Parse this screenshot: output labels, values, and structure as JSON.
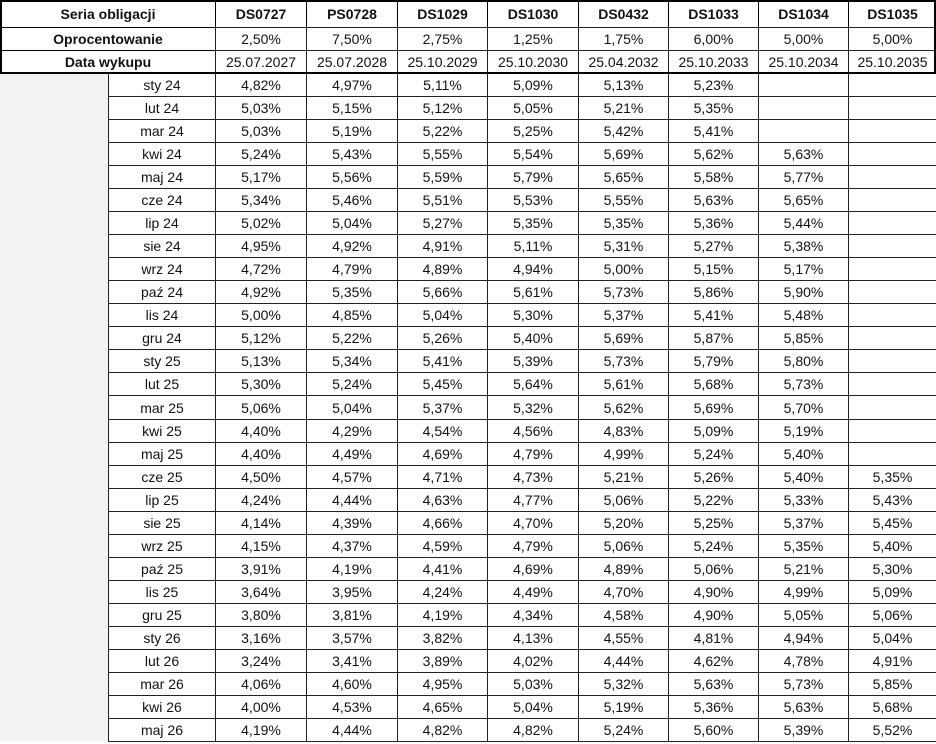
{
  "table": {
    "header": {
      "label": "Seria obligacji",
      "series": [
        "DS0727",
        "PS0728",
        "DS1029",
        "DS1030",
        "DS0432",
        "DS1033",
        "DS1034",
        "DS1035"
      ]
    },
    "rate": {
      "label": "Oprocentowanie",
      "values": [
        "2,50%",
        "7,50%",
        "2,75%",
        "1,25%",
        "1,75%",
        "6,00%",
        "5,00%",
        "5,00%"
      ]
    },
    "maturity": {
      "label": "Data wykupu",
      "values": [
        "25.07.2027",
        "25.07.2028",
        "25.10.2029",
        "25.10.2030",
        "25.04.2032",
        "25.10.2033",
        "25.10.2034",
        "25.10.2035"
      ]
    },
    "rows": [
      {
        "month": "sty 24",
        "values": [
          "4,82%",
          "4,97%",
          "5,11%",
          "5,09%",
          "5,13%",
          "5,23%",
          null,
          null
        ]
      },
      {
        "month": "lut 24",
        "values": [
          "5,03%",
          "5,15%",
          "5,12%",
          "5,05%",
          "5,21%",
          "5,35%",
          null,
          null
        ]
      },
      {
        "month": "mar 24",
        "values": [
          "5,03%",
          "5,19%",
          "5,22%",
          "5,25%",
          "5,42%",
          "5,41%",
          null,
          null
        ]
      },
      {
        "month": "kwi 24",
        "values": [
          "5,24%",
          "5,43%",
          "5,55%",
          "5,54%",
          "5,69%",
          "5,62%",
          "5,63%",
          null
        ]
      },
      {
        "month": "maj 24",
        "values": [
          "5,17%",
          "5,56%",
          "5,59%",
          "5,79%",
          "5,65%",
          "5,58%",
          "5,77%",
          null
        ]
      },
      {
        "month": "cze 24",
        "values": [
          "5,34%",
          "5,46%",
          "5,51%",
          "5,53%",
          "5,55%",
          "5,63%",
          "5,65%",
          null
        ]
      },
      {
        "month": "lip 24",
        "values": [
          "5,02%",
          "5,04%",
          "5,27%",
          "5,35%",
          "5,35%",
          "5,36%",
          "5,44%",
          null
        ]
      },
      {
        "month": "sie 24",
        "values": [
          "4,95%",
          "4,92%",
          "4,91%",
          "5,11%",
          "5,31%",
          "5,27%",
          "5,38%",
          null
        ]
      },
      {
        "month": "wrz 24",
        "values": [
          "4,72%",
          "4,79%",
          "4,89%",
          "4,94%",
          "5,00%",
          "5,15%",
          "5,17%",
          null
        ]
      },
      {
        "month": "paź 24",
        "values": [
          "4,92%",
          "5,35%",
          "5,66%",
          "5,61%",
          "5,73%",
          "5,86%",
          "5,90%",
          null
        ]
      },
      {
        "month": "lis 24",
        "values": [
          "5,00%",
          "4,85%",
          "5,04%",
          "5,30%",
          "5,37%",
          "5,41%",
          "5,48%",
          null
        ]
      },
      {
        "month": "gru 24",
        "values": [
          "5,12%",
          "5,22%",
          "5,26%",
          "5,40%",
          "5,69%",
          "5,87%",
          "5,85%",
          null
        ]
      },
      {
        "month": "sty 25",
        "values": [
          "5,13%",
          "5,34%",
          "5,41%",
          "5,39%",
          "5,73%",
          "5,79%",
          "5,80%",
          null
        ]
      },
      {
        "month": "lut 25",
        "values": [
          "5,30%",
          "5,24%",
          "5,45%",
          "5,64%",
          "5,61%",
          "5,68%",
          "5,73%",
          null
        ]
      },
      {
        "month": "mar 25",
        "values": [
          "5,06%",
          "5,04%",
          "5,37%",
          "5,32%",
          "5,62%",
          "5,69%",
          "5,70%",
          null
        ]
      },
      {
        "month": "kwi 25",
        "values": [
          "4,40%",
          "4,29%",
          "4,54%",
          "4,56%",
          "4,83%",
          "5,09%",
          "5,19%",
          null
        ]
      },
      {
        "month": "maj 25",
        "values": [
          "4,40%",
          "4,49%",
          "4,69%",
          "4,79%",
          "4,99%",
          "5,24%",
          "5,40%",
          null
        ]
      },
      {
        "month": "cze 25",
        "values": [
          "4,50%",
          "4,57%",
          "4,71%",
          "4,73%",
          "5,21%",
          "5,26%",
          "5,40%",
          "5,35%"
        ]
      },
      {
        "month": "lip 25",
        "values": [
          "4,24%",
          "4,44%",
          "4,63%",
          "4,77%",
          "5,06%",
          "5,22%",
          "5,33%",
          "5,43%"
        ]
      },
      {
        "month": "sie 25",
        "values": [
          "4,14%",
          "4,39%",
          "4,66%",
          "4,70%",
          "5,20%",
          "5,25%",
          "5,37%",
          "5,45%"
        ]
      },
      {
        "month": "wrz 25",
        "values": [
          "4,15%",
          "4,37%",
          "4,59%",
          "4,79%",
          "5,06%",
          "5,24%",
          "5,35%",
          "5,40%"
        ]
      },
      {
        "month": "paź 25",
        "values": [
          "3,91%",
          "4,19%",
          "4,41%",
          "4,69%",
          "4,89%",
          "5,06%",
          "5,21%",
          "5,30%"
        ]
      },
      {
        "month": "lis 25",
        "values": [
          "3,64%",
          "3,95%",
          "4,24%",
          "4,49%",
          "4,70%",
          "4,90%",
          "4,99%",
          "5,09%"
        ]
      },
      {
        "month": "gru 25",
        "values": [
          "3,80%",
          "3,81%",
          "4,19%",
          "4,34%",
          "4,58%",
          "4,90%",
          "5,05%",
          "5,06%"
        ]
      },
      {
        "month": "sty 26",
        "values": [
          "3,16%",
          "3,57%",
          "3,82%",
          "4,13%",
          "4,55%",
          "4,81%",
          "4,94%",
          "5,04%"
        ]
      },
      {
        "month": "lut 26",
        "values": [
          "3,24%",
          "3,41%",
          "3,89%",
          "4,02%",
          "4,44%",
          "4,62%",
          "4,78%",
          "4,91%"
        ]
      },
      {
        "month": "mar 26",
        "values": [
          "4,06%",
          "4,60%",
          "4,95%",
          "5,03%",
          "5,32%",
          "5,63%",
          "5,73%",
          "5,85%"
        ]
      },
      {
        "month": "kwi 26",
        "values": [
          "4,00%",
          "4,53%",
          "4,65%",
          "5,04%",
          "5,19%",
          "5,36%",
          "5,63%",
          "5,68%"
        ]
      },
      {
        "month": "maj 26",
        "values": [
          "4,19%",
          "4,44%",
          "4,82%",
          "4,82%",
          "5,24%",
          "5,60%",
          "5,39%",
          "5,52%"
        ]
      }
    ]
  }
}
